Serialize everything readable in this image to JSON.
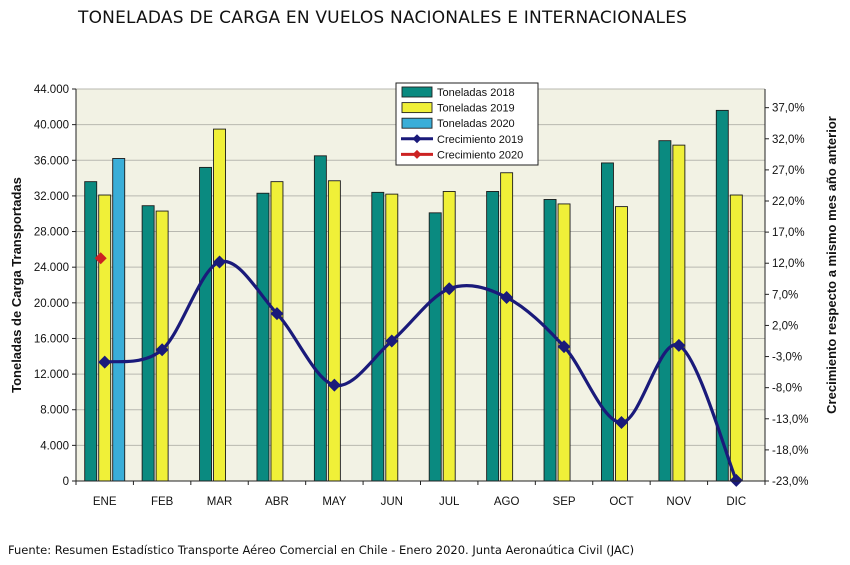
{
  "title": "TONELADAS DE CARGA EN VUELOS NACIONALES E INTERNACIONALES",
  "source": "Fuente: Resumen Estadístico Transporte Aéreo Comercial en Chile - Enero 2020. Junta Aeronaútica Civil (JAC)",
  "colors": {
    "t2018": "#0a8a80",
    "t2019": "#f0f038",
    "t2020": "#3aaed8",
    "c2019": "#1a1a7a",
    "c2020": "#cc2222",
    "plot_bg": "#f2f2e4"
  },
  "chart_data": {
    "type": "bar",
    "title": "TONELADAS DE CARGA EN VUELOS NACIONALES E INTERNACIONALES",
    "ylabel": "Toneladas de Carga  Transportadas",
    "y2label": "Crecimiento respecto a mismo mes año anterior",
    "categories": [
      "ENE",
      "FEB",
      "MAR",
      "ABR",
      "MAY",
      "JUN",
      "JUL",
      "AGO",
      "SEP",
      "OCT",
      "NOV",
      "DIC"
    ],
    "ylim": [
      0,
      44000
    ],
    "yticks": [
      0,
      4000,
      8000,
      12000,
      16000,
      20000,
      24000,
      28000,
      32000,
      36000,
      40000,
      44000
    ],
    "ytick_labels": [
      "0",
      "4.000",
      "8.000",
      "12.000",
      "16.000",
      "20.000",
      "24.000",
      "28.000",
      "32.000",
      "36.000",
      "40.000",
      "44.000"
    ],
    "y2lim": [
      -23,
      40
    ],
    "y2ticks": [
      -23,
      -18,
      -13,
      -8,
      -3,
      2,
      7,
      12,
      17,
      22,
      27,
      32,
      37
    ],
    "y2tick_labels": [
      "-23,0%",
      "-18,0%",
      "-13,0%",
      "-8,0%",
      "-3,0%",
      "2,0%",
      "7,0%",
      "12,0%",
      "17,0%",
      "22,0%",
      "27,0%",
      "32,0%",
      "37,0%"
    ],
    "series": [
      {
        "name": "Toneladas 2018",
        "kind": "bar",
        "values": [
          33600,
          30900,
          35200,
          32300,
          36500,
          32400,
          30100,
          32500,
          31600,
          35700,
          38200,
          41600
        ]
      },
      {
        "name": "Toneladas 2019",
        "kind": "bar",
        "values": [
          32100,
          30300,
          39500,
          33600,
          33700,
          32200,
          32500,
          34600,
          31100,
          30800,
          37700,
          32100
        ]
      },
      {
        "name": "Toneladas 2020",
        "kind": "bar",
        "values": [
          36200,
          null,
          null,
          null,
          null,
          null,
          null,
          null,
          null,
          null,
          null,
          null
        ]
      },
      {
        "name": "Crecimiento 2019",
        "kind": "line",
        "axis": "y2",
        "values": [
          -3.9,
          -1.9,
          12.2,
          3.9,
          -7.6,
          -0.5,
          7.9,
          6.5,
          -1.4,
          -13.6,
          -1.2,
          -22.9
        ]
      },
      {
        "name": "Crecimiento 2020",
        "kind": "line",
        "axis": "y2",
        "values": [
          12.8,
          null,
          null,
          null,
          null,
          null,
          null,
          null,
          null,
          null,
          null,
          null
        ]
      }
    ],
    "legend_position": "top-center",
    "grid": true
  }
}
